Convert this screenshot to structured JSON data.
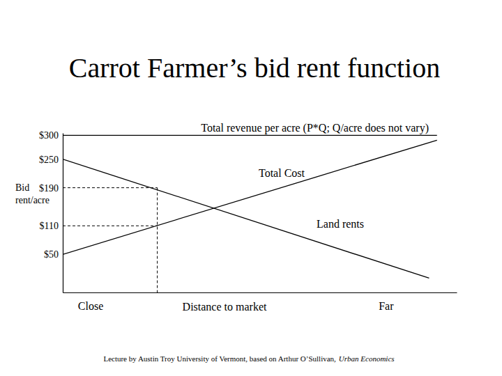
{
  "chart_data": {
    "type": "line",
    "title": "Carrot Farmer’s bid rent function",
    "y_label": "Bid rent/acre",
    "x_label": "Distance to market",
    "notes": [
      "Lecture by Austin Troy University of Vermont, based on Arthur O’Sullivan,",
      "Urban Economics"
    ],
    "xlim": [
      0,
      100
    ],
    "xticks": [
      {
        "value": 7,
        "label": "Close"
      },
      {
        "value": 82,
        "label": "Far"
      }
    ],
    "ylim": [
      -30,
      305
    ],
    "yticks": [
      {
        "value": 300,
        "label": "$300"
      },
      {
        "value": 250,
        "label": "$250"
      },
      {
        "value": 190,
        "label": "$190"
      },
      {
        "value": 110,
        "label": "$110"
      },
      {
        "value": 50,
        "label": "$50"
      }
    ],
    "grid": false,
    "series": [
      {
        "name": "Total revenue per acre (P*Q; Q/acre does not vary)",
        "color": "#000000",
        "line_style": "solid",
        "x": [
          0,
          95
        ],
        "values": [
          300,
          300
        ]
      },
      {
        "name": "Total Cost",
        "color": "#000000",
        "line_style": "solid",
        "x": [
          0,
          95
        ],
        "values": [
          50,
          290
        ]
      },
      {
        "name": "Land rents",
        "color": "#000000",
        "line_style": "solid",
        "x": [
          0,
          93
        ],
        "values": [
          250,
          0
        ]
      }
    ],
    "guides": [
      {
        "x": 24,
        "y": 190
      },
      {
        "x": 24,
        "y": 110
      }
    ]
  }
}
